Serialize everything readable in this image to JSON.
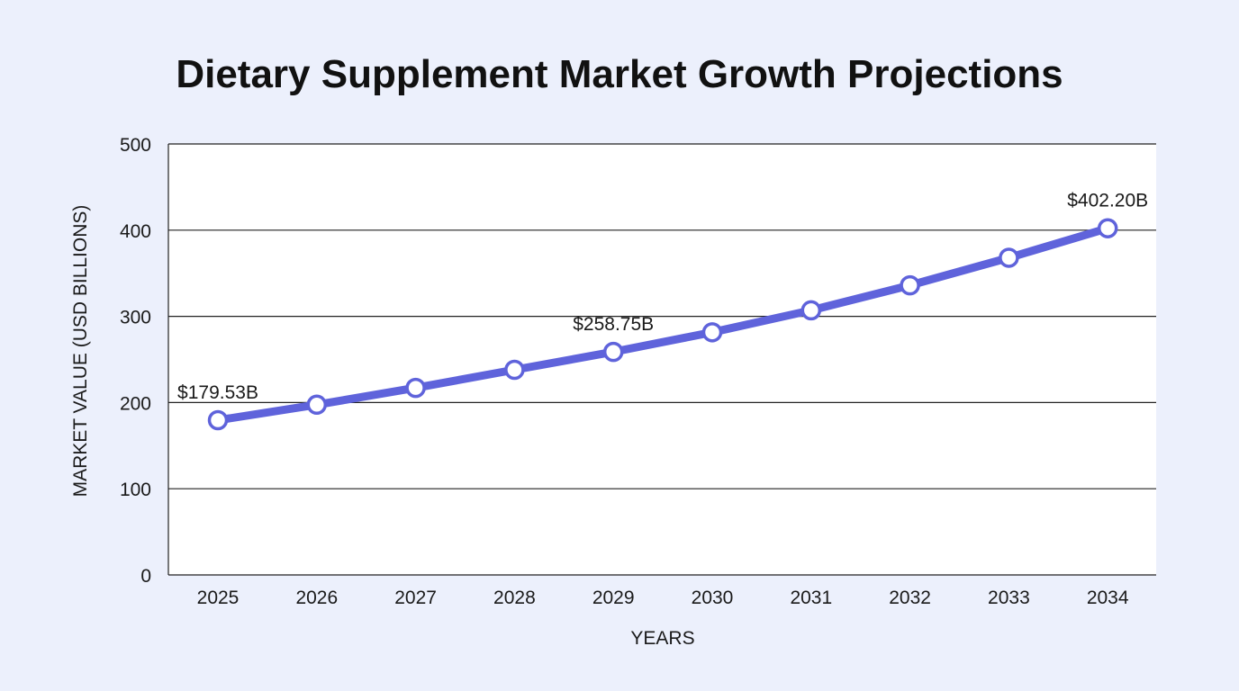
{
  "chart_data": {
    "type": "line",
    "title": "Dietary Supplement Market Growth Projections",
    "xlabel": "YEARS",
    "ylabel": "MARKET VALUE (USD BILLIONS)",
    "ylim": [
      0,
      500
    ],
    "yticks": [
      "0",
      "100",
      "200",
      "300",
      "400",
      "500"
    ],
    "grid": true,
    "legend": "none",
    "line_color": "#5f63db",
    "marker_fill": "#ffffff",
    "categories": [
      "2025",
      "2026",
      "2027",
      "2028",
      "2029",
      "2030",
      "2031",
      "2032",
      "2033",
      "2034"
    ],
    "series": [
      {
        "values": [
          179.53,
          197.5,
          217.0,
          238.0,
          258.75,
          281.5,
          307.0,
          336.0,
          368.0,
          402.2
        ]
      }
    ],
    "annotations": [
      {
        "index": 0,
        "text": "$179.53B"
      },
      {
        "index": 4,
        "text": "$258.75B"
      },
      {
        "index": 9,
        "text": "$402.20B"
      }
    ]
  }
}
